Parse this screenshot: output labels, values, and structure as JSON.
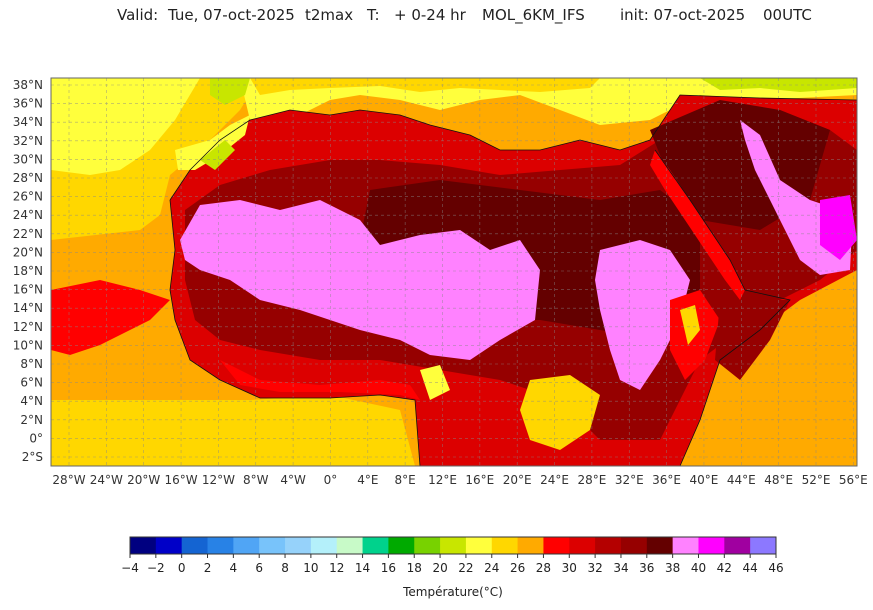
{
  "header": {
    "valid_label": "Valid:",
    "valid_date": "Tue, 07-oct-2025",
    "variable": "t2max",
    "t_label": "T:",
    "lead_time": "+ 0-24 hr",
    "model": "MOL_6KM_IFS",
    "init": "init: 07-oct-2025",
    "init_time": "00UTC"
  },
  "axes": {
    "lat_labels": [
      "38°N",
      "36°N",
      "34°N",
      "32°N",
      "30°N",
      "28°N",
      "26°N",
      "24°N",
      "22°N",
      "20°N",
      "18°N",
      "16°N",
      "14°N",
      "12°N",
      "10°N",
      "8°N",
      "6°N",
      "4°N",
      "2°N",
      "0°",
      "2°S"
    ],
    "lon_labels": [
      "28°W",
      "24°W",
      "20°W",
      "16°W",
      "12°W",
      "8°W",
      "4°W",
      "0°",
      "4°E",
      "8°E",
      "12°E",
      "16°E",
      "20°E",
      "24°E",
      "28°E",
      "32°E",
      "36°E",
      "40°E",
      "44°E",
      "48°E",
      "52°E",
      "56°E"
    ]
  },
  "colorbar": {
    "title": "Température(°C)",
    "ticks": [
      "-4",
      "-2",
      "0",
      "2",
      "4",
      "6",
      "8",
      "10",
      "12",
      "14",
      "16",
      "18",
      "20",
      "22",
      "24",
      "26",
      "28",
      "30",
      "32",
      "34",
      "36",
      "38",
      "40",
      "42",
      "44",
      "46"
    ],
    "colors": [
      "#000080",
      "#0000c8",
      "#1464d2",
      "#2882e6",
      "#50a5f5",
      "#78c3fa",
      "#96d2fa",
      "#b4f0fa",
      "#c8fac8",
      "#00d28c",
      "#00aa00",
      "#78d200",
      "#c8e600",
      "#ffff3c",
      "#ffd700",
      "#ffaa00",
      "#ff0000",
      "#dc0000",
      "#b40000",
      "#960000",
      "#640000",
      "#ff82ff",
      "#ff00ff",
      "#a000a0",
      "#8c78ff"
    ]
  },
  "palette": {
    "ocean_cool": "#ffaa00",
    "ocean_warm": "#ffd700",
    "land_yellow": "#ffff3c",
    "hot_red": "#dc0000",
    "very_hot": "#960000",
    "extreme": "#640000",
    "magenta": "#ff82ff"
  }
}
